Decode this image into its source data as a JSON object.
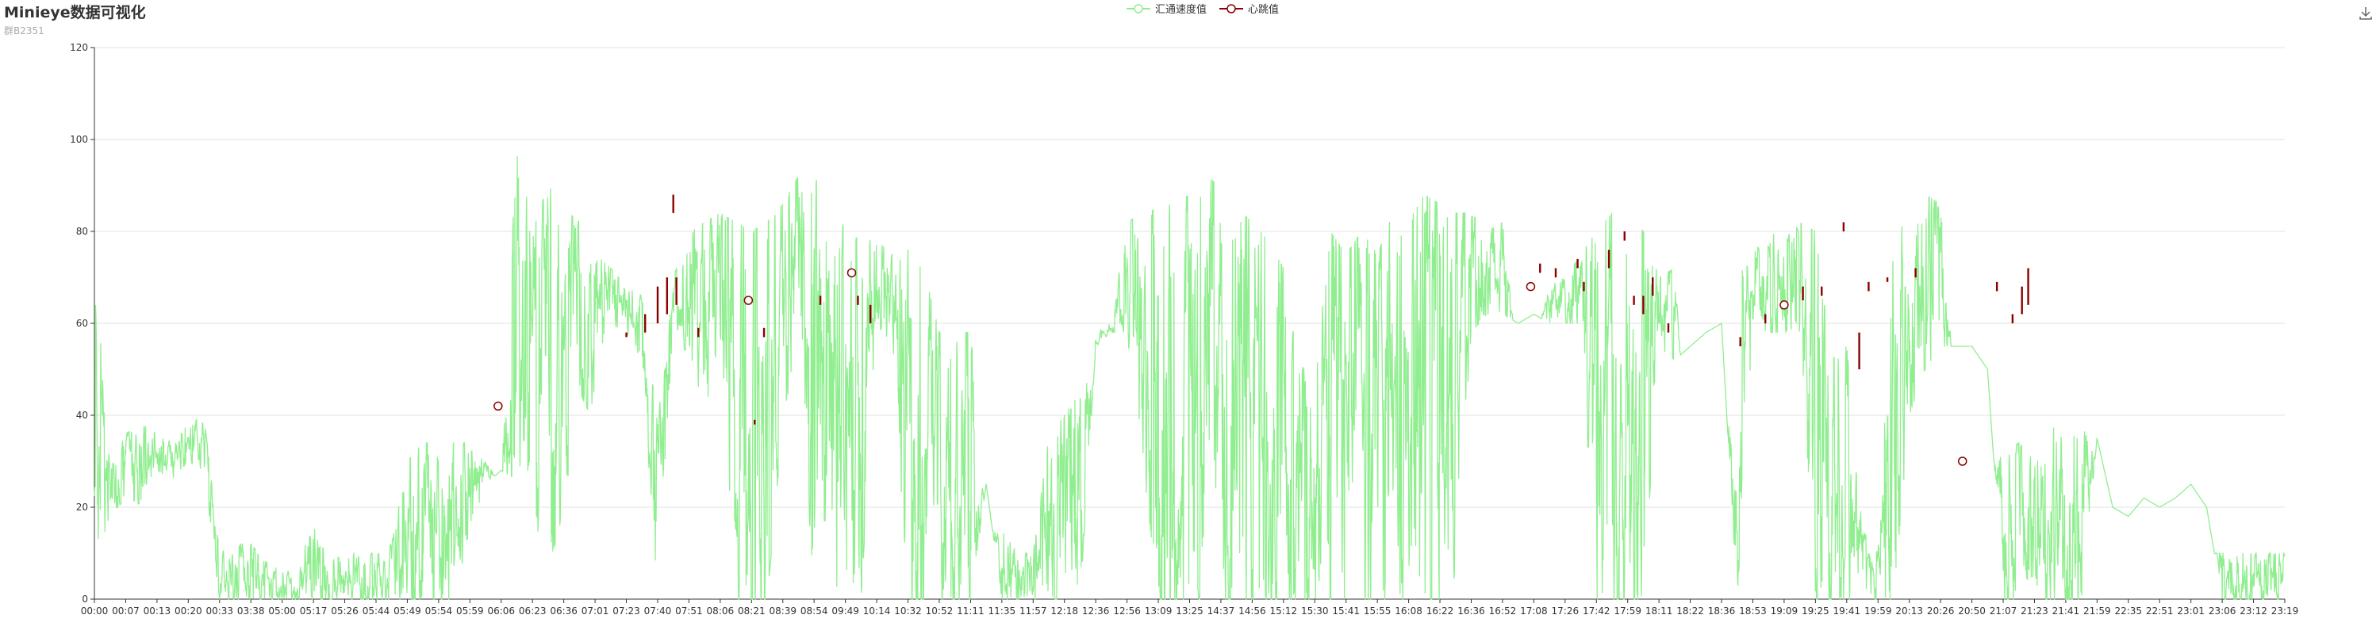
{
  "header": {
    "title": "Minieye数据可视化",
    "subtitle": "群B2351"
  },
  "legend": {
    "items": [
      {
        "label": "汇通速度值",
        "color": "#90ee90",
        "icon": "line-with-circle-icon"
      },
      {
        "label": "心跳值",
        "color": "#8b0000",
        "icon": "line-with-circle-icon"
      }
    ]
  },
  "toolbox": {
    "icon": "download-icon"
  },
  "chart_data": {
    "type": "line",
    "ylim": [
      0,
      120
    ],
    "y_ticks": [
      0,
      20,
      40,
      60,
      80,
      100,
      120
    ],
    "grid": true,
    "legend_position": "top-center",
    "x_ticks": [
      "00:00",
      "00:07",
      "00:13",
      "00:20",
      "00:33",
      "03:38",
      "05:00",
      "05:17",
      "05:26",
      "05:44",
      "05:49",
      "05:54",
      "05:59",
      "06:06",
      "06:23",
      "06:36",
      "07:01",
      "07:23",
      "07:40",
      "07:51",
      "08:06",
      "08:21",
      "08:39",
      "08:54",
      "09:49",
      "10:14",
      "10:32",
      "10:52",
      "11:11",
      "11:35",
      "11:57",
      "12:18",
      "12:36",
      "12:56",
      "13:09",
      "13:25",
      "14:37",
      "14:56",
      "15:12",
      "15:30",
      "15:41",
      "15:55",
      "16:08",
      "16:22",
      "16:36",
      "16:52",
      "17:08",
      "17:26",
      "17:42",
      "17:59",
      "18:11",
      "18:22",
      "18:36",
      "18:53",
      "19:09",
      "19:25",
      "19:41",
      "19:59",
      "20:13",
      "20:26",
      "20:50",
      "21:07",
      "21:23",
      "21:41",
      "21:59",
      "22:35",
      "22:51",
      "23:01",
      "23:06",
      "23:12",
      "23:19"
    ],
    "series": [
      {
        "name": "汇通速度值",
        "color": "#90ee90",
        "style": "band",
        "band_x": [
          0,
          0.5,
          1,
          1.5,
          2,
          2.5,
          3,
          3.5,
          4,
          4.5,
          5,
          5.5,
          6,
          6.5,
          7,
          7.5,
          8,
          8.5,
          9,
          9.5,
          10,
          10.5,
          11,
          11.5,
          12,
          12.5,
          13,
          13.5,
          14,
          14.5,
          15,
          15.5,
          16,
          16.5,
          17,
          17.5,
          18,
          18.5,
          19,
          19.5,
          20,
          20.5,
          21,
          21.5,
          22,
          22.5,
          23,
          23.5,
          24,
          24.5,
          25,
          25.5,
          26,
          26.5,
          27,
          27.5,
          28,
          28.5,
          29,
          29.5,
          30,
          30.5,
          31,
          31.5,
          32,
          32.5,
          33,
          33.5,
          34,
          34.5,
          35,
          35.5,
          36,
          36.5,
          37,
          37.5,
          38,
          38.5,
          39,
          39.5,
          40,
          40.5,
          41,
          41.5,
          42,
          42.5,
          43,
          43.5,
          44,
          44.5,
          45,
          45.5,
          46,
          46.5,
          47,
          47.5,
          48,
          48.5,
          49,
          49.5,
          50,
          50.5,
          51,
          51.5,
          52,
          52.5,
          53,
          53.5,
          54,
          54.5,
          55,
          55.5,
          56,
          56.5,
          57,
          57.5,
          58,
          58.5,
          59,
          59.5,
          60,
          60.5,
          61,
          61.5,
          62,
          62.5,
          63,
          63.5,
          64,
          64.5,
          65,
          65.5,
          66,
          66.5,
          67,
          67.5,
          68,
          68.5,
          69,
          69.5,
          70
        ],
        "band_low": [
          8,
          18,
          22,
          20,
          28,
          26,
          30,
          28,
          0,
          0,
          0,
          0,
          0,
          0,
          0,
          0,
          0,
          0,
          0,
          0,
          0,
          0,
          0,
          0,
          15,
          25,
          28,
          26,
          15,
          5,
          20,
          45,
          38,
          60,
          58,
          52,
          0,
          60,
          52,
          40,
          58,
          0,
          0,
          0,
          38,
          58,
          0,
          5,
          0,
          0,
          60,
          55,
          0,
          0,
          0,
          0,
          0,
          25,
          0,
          0,
          0,
          0,
          0,
          0,
          55,
          58,
          58,
          30,
          0,
          0,
          0,
          0,
          0,
          0,
          0,
          0,
          0,
          0,
          0,
          0,
          0,
          0,
          0,
          0,
          0,
          0,
          0,
          5,
          58,
          62,
          62,
          60,
          62,
          60,
          60,
          60,
          0,
          0,
          0,
          0,
          55,
          52,
          55,
          58,
          60,
          0,
          60,
          58,
          58,
          58,
          0,
          0,
          0,
          0,
          0,
          0,
          40,
          50,
          55,
          55,
          55,
          50,
          0,
          0,
          0,
          0,
          0,
          0,
          35,
          20,
          18,
          22,
          20,
          22,
          25,
          20,
          0,
          0,
          0,
          0,
          0
        ],
        "band_high": [
          75,
          28,
          36,
          38,
          36,
          34,
          38,
          40,
          10,
          12,
          12,
          8,
          6,
          6,
          18,
          8,
          10,
          10,
          10,
          12,
          30,
          34,
          34,
          34,
          34,
          30,
          25,
          100,
          80,
          90,
          85,
          82,
          75,
          72,
          68,
          66,
          38,
          70,
          80,
          82,
          84,
          82,
          80,
          82,
          86,
          92,
          92,
          90,
          80,
          78,
          78,
          75,
          76,
          72,
          58,
          58,
          58,
          15,
          15,
          10,
          10,
          35,
          40,
          45,
          58,
          60,
          82,
          84,
          85,
          86,
          88,
          92,
          90,
          85,
          82,
          78,
          72,
          50,
          52,
          80,
          75,
          80,
          75,
          84,
          82,
          88,
          86,
          84,
          84,
          80,
          82,
          50,
          55,
          68,
          70,
          75,
          80,
          84,
          86,
          80,
          70,
          72,
          20,
          12,
          10,
          70,
          75,
          80,
          78,
          82,
          80,
          52,
          55,
          15,
          10,
          80,
          84,
          88,
          86,
          40,
          30,
          28,
          32,
          34,
          30,
          35,
          45,
          38,
          30,
          12,
          10,
          10,
          10,
          10,
          10,
          10,
          10,
          10,
          10,
          10,
          10
        ],
        "noise_seed": 7
      },
      {
        "name": "心跳值",
        "color": "#8b0000",
        "style": "points",
        "segments": [
          {
            "x": 17.0,
            "low": 57,
            "high": 58
          },
          {
            "x": 17.6,
            "low": 58,
            "high": 62
          },
          {
            "x": 18.0,
            "low": 60,
            "high": 68
          },
          {
            "x": 18.3,
            "low": 62,
            "high": 70
          },
          {
            "x": 18.5,
            "low": 84,
            "high": 88
          },
          {
            "x": 18.6,
            "low": 64,
            "high": 70
          },
          {
            "x": 19.3,
            "low": 57,
            "high": 59
          },
          {
            "x": 21.1,
            "low": 38,
            "high": 39
          },
          {
            "x": 21.4,
            "low": 57,
            "high": 59
          },
          {
            "x": 23.2,
            "low": 64,
            "high": 66
          },
          {
            "x": 24.4,
            "low": 64,
            "high": 66
          },
          {
            "x": 24.8,
            "low": 60,
            "high": 64
          },
          {
            "x": 46.2,
            "low": 71,
            "high": 73
          },
          {
            "x": 46.7,
            "low": 70,
            "high": 72
          },
          {
            "x": 47.4,
            "low": 72,
            "high": 74
          },
          {
            "x": 47.6,
            "low": 67,
            "high": 69
          },
          {
            "x": 48.4,
            "low": 72,
            "high": 76
          },
          {
            "x": 48.9,
            "low": 78,
            "high": 80
          },
          {
            "x": 49.2,
            "low": 64,
            "high": 66
          },
          {
            "x": 49.5,
            "low": 62,
            "high": 66
          },
          {
            "x": 49.8,
            "low": 66,
            "high": 70
          },
          {
            "x": 50.3,
            "low": 58,
            "high": 60
          },
          {
            "x": 52.6,
            "low": 55,
            "high": 57
          },
          {
            "x": 53.4,
            "low": 60,
            "high": 62
          },
          {
            "x": 54.6,
            "low": 65,
            "high": 68
          },
          {
            "x": 55.2,
            "low": 66,
            "high": 68
          },
          {
            "x": 55.9,
            "low": 80,
            "high": 82
          },
          {
            "x": 56.4,
            "low": 50,
            "high": 58
          },
          {
            "x": 56.7,
            "low": 67,
            "high": 69
          },
          {
            "x": 57.3,
            "low": 69,
            "high": 70
          },
          {
            "x": 58.2,
            "low": 70,
            "high": 72
          },
          {
            "x": 60.8,
            "low": 67,
            "high": 69
          },
          {
            "x": 61.3,
            "low": 60,
            "high": 62
          },
          {
            "x": 61.6,
            "low": 62,
            "high": 68
          },
          {
            "x": 61.8,
            "low": 64,
            "high": 72
          }
        ],
        "markers": [
          {
            "x": 12.9,
            "y": 42
          },
          {
            "x": 20.9,
            "y": 65
          },
          {
            "x": 24.2,
            "y": 71
          },
          {
            "x": 45.9,
            "y": 68
          },
          {
            "x": 54.0,
            "y": 64
          },
          {
            "x": 59.7,
            "y": 30
          }
        ]
      }
    ]
  }
}
